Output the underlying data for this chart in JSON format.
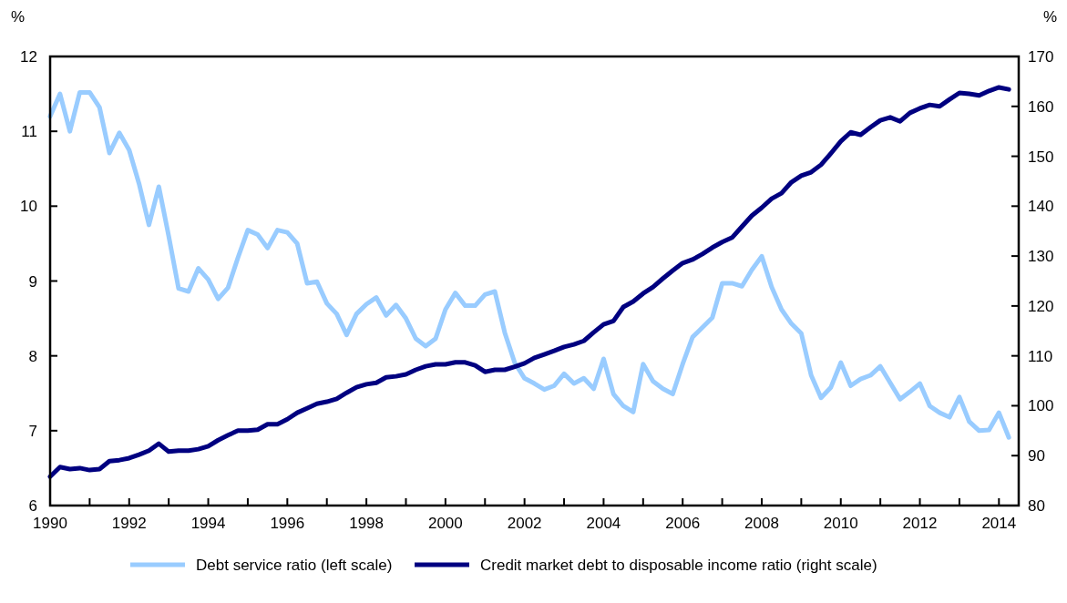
{
  "chart_data": {
    "type": "line",
    "ylabel": "%",
    "y2label": "%",
    "x": [
      1990,
      1990.25,
      1990.5,
      1990.75,
      1991,
      1991.25,
      1991.5,
      1991.75,
      1992,
      1992.25,
      1992.5,
      1992.75,
      1993,
      1993.25,
      1993.5,
      1993.75,
      1994,
      1994.25,
      1994.5,
      1994.75,
      1995,
      1995.25,
      1995.5,
      1995.75,
      1996,
      1996.25,
      1996.5,
      1996.75,
      1997,
      1997.25,
      1997.5,
      1997.75,
      1998,
      1998.25,
      1998.5,
      1998.75,
      1999,
      1999.25,
      1999.5,
      1999.75,
      2000,
      2000.25,
      2000.5,
      2000.75,
      2001,
      2001.25,
      2001.5,
      2001.75,
      2002,
      2002.25,
      2002.5,
      2002.75,
      2003,
      2003.25,
      2003.5,
      2003.75,
      2004,
      2004.25,
      2004.5,
      2004.75,
      2005,
      2005.25,
      2005.5,
      2005.75,
      2006,
      2006.25,
      2006.5,
      2006.75,
      2007,
      2007.25,
      2007.5,
      2007.75,
      2008,
      2008.25,
      2008.5,
      2008.75,
      2009,
      2009.25,
      2009.5,
      2009.75,
      2010,
      2010.25,
      2010.5,
      2010.75,
      2011,
      2011.25,
      2011.5,
      2011.75,
      2012,
      2012.25,
      2012.5,
      2012.75,
      2013,
      2013.25,
      2013.5,
      2013.75,
      2014,
      2014.25
    ],
    "series": [
      {
        "name": "Debt service ratio (left scale)",
        "color": "#99ccff",
        "values": [
          11.2,
          11.5,
          11.0,
          11.52,
          11.52,
          11.32,
          10.71,
          10.98,
          10.75,
          10.3,
          9.75,
          10.26,
          9.6,
          8.9,
          8.86,
          9.17,
          9.02,
          8.76,
          8.91,
          9.31,
          9.68,
          9.62,
          9.44,
          9.68,
          9.65,
          9.5,
          8.97,
          8.99,
          8.7,
          8.56,
          8.28,
          8.56,
          8.69,
          8.78,
          8.54,
          8.68,
          8.5,
          8.23,
          8.13,
          8.23,
          8.62,
          8.84,
          8.67,
          8.67,
          8.82,
          8.86,
          8.31,
          7.91,
          7.7,
          7.63,
          7.55,
          7.6,
          7.76,
          7.63,
          7.7,
          7.56,
          7.96,
          7.49,
          7.33,
          7.25,
          7.89,
          7.66,
          7.56,
          7.49,
          7.89,
          8.25,
          8.38,
          8.51,
          8.97,
          8.97,
          8.93,
          9.15,
          9.33,
          8.92,
          8.62,
          8.43,
          8.3,
          7.74,
          7.44,
          7.58,
          7.91,
          7.6,
          7.69,
          7.74,
          7.86,
          7.64,
          7.42,
          7.52,
          7.63,
          7.33,
          7.24,
          7.18,
          7.45,
          7.12,
          7.0,
          7.01,
          7.24,
          6.91
        ]
      },
      {
        "name": "Credit market debt to disposable income ratio (right scale)",
        "color": "#000080",
        "axis": "y2",
        "values": [
          85.8,
          87.7,
          87.3,
          87.5,
          87.1,
          87.3,
          88.9,
          89.1,
          89.5,
          90.2,
          91.0,
          92.4,
          90.8,
          91.0,
          91.0,
          91.3,
          91.9,
          93.1,
          94.1,
          95.0,
          95.0,
          95.2,
          96.3,
          96.3,
          97.3,
          98.6,
          99.5,
          100.4,
          100.8,
          101.4,
          102.6,
          103.7,
          104.3,
          104.6,
          105.7,
          105.9,
          106.3,
          107.2,
          107.9,
          108.3,
          108.3,
          108.7,
          108.7,
          108.1,
          106.8,
          107.2,
          107.2,
          107.8,
          108.5,
          109.6,
          110.3,
          111.0,
          111.8,
          112.3,
          113.0,
          114.7,
          116.3,
          117.0,
          119.8,
          120.9,
          122.5,
          123.8,
          125.5,
          127.1,
          128.6,
          129.3,
          130.4,
          131.7,
          132.8,
          133.7,
          135.9,
          138.1,
          139.7,
          141.5,
          142.6,
          144.8,
          146.1,
          146.8,
          148.3,
          150.6,
          153.0,
          154.8,
          154.3,
          155.8,
          157.2,
          157.8,
          157.0,
          158.7,
          159.6,
          160.3,
          160.0,
          161.4,
          162.7,
          162.5,
          162.2,
          163.1,
          163.8,
          163.4
        ]
      }
    ],
    "xlim": [
      1990,
      2014.5
    ],
    "xticks": [
      1990,
      {
        "value": 1991,
        "label": null
      },
      1992,
      {
        "value": 1993,
        "label": null
      },
      1994,
      {
        "value": 1995,
        "label": null
      },
      1996,
      {
        "value": 1997,
        "label": null
      },
      1998,
      {
        "value": 1999,
        "label": null
      },
      2000,
      {
        "value": 2001,
        "label": null
      },
      2002,
      {
        "value": 2003,
        "label": null
      },
      2004,
      {
        "value": 2005,
        "label": null
      },
      2006,
      {
        "value": 2007,
        "label": null
      },
      2008,
      {
        "value": 2009,
        "label": null
      },
      2010,
      {
        "value": 2011,
        "label": null
      },
      2012,
      {
        "value": 2013,
        "label": null
      },
      2014
    ],
    "ylim": [
      6,
      12
    ],
    "yticks": [
      6,
      7,
      8,
      9,
      10,
      11,
      12
    ],
    "y2lim": [
      80,
      170
    ],
    "y2ticks": [
      80,
      90,
      100,
      110,
      120,
      130,
      140,
      150,
      160,
      170
    ],
    "grid": false,
    "legend": "bottom",
    "line_style": "solid",
    "marker": "none"
  }
}
